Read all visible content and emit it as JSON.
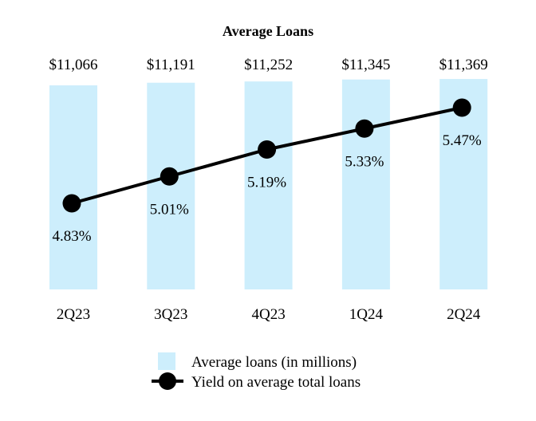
{
  "chart_data": {
    "type": "bar",
    "title": "Average Loans",
    "categories": [
      "2Q23",
      "3Q23",
      "4Q23",
      "1Q24",
      "2Q24"
    ],
    "series": [
      {
        "name": "Average loans (in millions)",
        "type": "bar",
        "values": [
          11066,
          11191,
          11252,
          11345,
          11369
        ],
        "labels": [
          "$11,066",
          "$11,191",
          "$11,252",
          "$11,345",
          "$11,369"
        ],
        "color": "#cdeefc"
      },
      {
        "name": "Yield on average total loans",
        "type": "line",
        "values": [
          4.83,
          5.01,
          5.19,
          5.33,
          5.47
        ],
        "labels": [
          "4.83%",
          "5.01%",
          "5.19%",
          "5.33%",
          "5.47%"
        ],
        "color": "#000000"
      }
    ],
    "grid": false,
    "legend": "bottom"
  }
}
